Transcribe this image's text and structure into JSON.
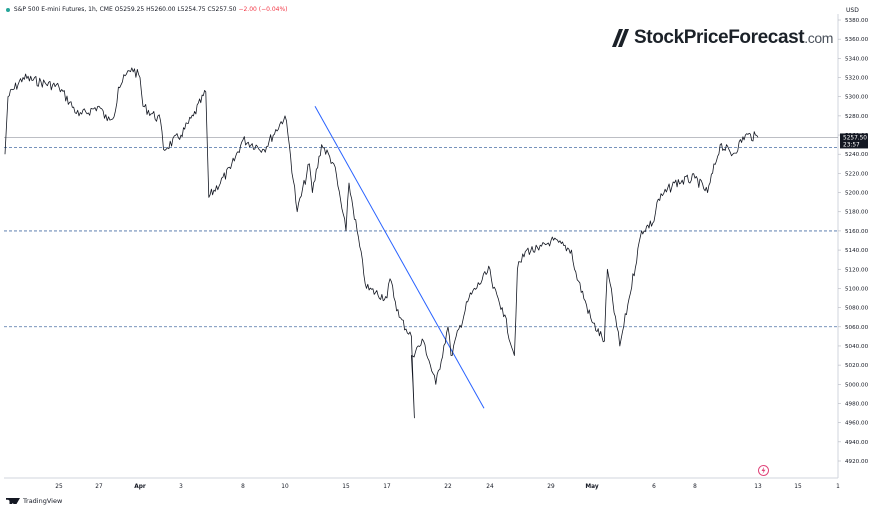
{
  "header": {
    "symbol_line": "S&P 500 E-mini Futures, 1h, CME",
    "open": "O5259.25",
    "high": "H5260.00",
    "low": "L5254.75",
    "close": "C5257.50",
    "change": "−2.00 (−0.04%)",
    "currency": "USD"
  },
  "brand": {
    "name": "StockPriceForecast",
    "domain": ".com"
  },
  "footer": {
    "tradingview": "TradingView"
  },
  "last_price": {
    "price": "5257.50",
    "countdown": "23:57"
  },
  "colors": {
    "candle": "#131722",
    "trendline": "#2962ff",
    "level_line": "#4a6fa5",
    "price_label_bg": "#131722",
    "axis_text": "#131722"
  },
  "chart_data": {
    "type": "line",
    "title": "S&P 500 E-mini Futures, 1h, CME",
    "xlabel": "",
    "ylabel": "",
    "y_axis_position": "right",
    "ylim": [
      4900,
      5380
    ],
    "y_ticks": [
      "5380.00",
      "5360.00",
      "5340.00",
      "5320.00",
      "5300.00",
      "5280.00",
      "5260.00",
      "5240.00",
      "5220.00",
      "5200.00",
      "5180.00",
      "5160.00",
      "5140.00",
      "5120.00",
      "5100.00",
      "5080.00",
      "5060.00",
      "5040.00",
      "5020.00",
      "5000.00",
      "4980.00",
      "4960.00",
      "4940.00",
      "4920.00"
    ],
    "x_ticks": [
      "25",
      "27",
      "Apr",
      "3",
      "8",
      "10",
      "15",
      "17",
      "22",
      "24",
      "29",
      "May",
      "6",
      "8",
      "13",
      "15",
      "1"
    ],
    "horizontal_levels": [
      5247,
      5160,
      5060
    ],
    "trendline": {
      "start": {
        "x": "Apr 11",
        "y": 5290
      },
      "end": {
        "x": "Apr 24",
        "y": 4975
      }
    },
    "series": [
      {
        "points": [
          [
            "Mar 22",
            5240
          ],
          [
            "Mar 22",
            5300
          ],
          [
            "Mar 23",
            5320
          ],
          [
            "Mar 25",
            5310
          ],
          [
            "Mar 26",
            5280
          ],
          [
            "Mar 27",
            5290
          ],
          [
            "Mar 28",
            5275
          ],
          [
            "Mar 29",
            5285
          ],
          [
            "Mar 29",
            5310
          ],
          [
            "Mar 31",
            5330
          ],
          [
            "Apr 1",
            5320
          ],
          [
            "Apr 1",
            5290
          ],
          [
            "Apr 2",
            5275
          ],
          [
            "Apr 2",
            5245
          ],
          [
            "Apr 3",
            5260
          ],
          [
            "Apr 4",
            5280
          ],
          [
            "Apr 5",
            5305
          ],
          [
            "Apr 5",
            5195
          ],
          [
            "Apr 7",
            5225
          ],
          [
            "Apr 8",
            5255
          ],
          [
            "Apr 9",
            5245
          ],
          [
            "Apr 10",
            5280
          ],
          [
            "Apr 10",
            5260
          ],
          [
            "Apr 11",
            5180
          ],
          [
            "Apr 12",
            5230
          ],
          [
            "Apr 12",
            5200
          ],
          [
            "Apr 13",
            5250
          ],
          [
            "Apr 14",
            5230
          ],
          [
            "Apr 15",
            5160
          ],
          [
            "Apr 15",
            5210
          ],
          [
            "Apr 16",
            5100
          ],
          [
            "Apr 17",
            5090
          ],
          [
            "Apr 17",
            5110
          ],
          [
            "Apr 18",
            5070
          ],
          [
            "Apr 19",
            5050
          ],
          [
            "Apr 19",
            4965
          ],
          [
            "Apr 19",
            5030
          ],
          [
            "Apr 20",
            5045
          ],
          [
            "Apr 21",
            5000
          ],
          [
            "Apr 22",
            5060
          ],
          [
            "Apr 22",
            5030
          ],
          [
            "Apr 23",
            5090
          ],
          [
            "Apr 24",
            5120
          ],
          [
            "Apr 24",
            5100
          ],
          [
            "Apr 25",
            5080
          ],
          [
            "Apr 26",
            5030
          ],
          [
            "Apr 26",
            5120
          ],
          [
            "Apr 27",
            5140
          ],
          [
            "Apr 28",
            5140
          ],
          [
            "Apr 29",
            5150
          ],
          [
            "Apr 30",
            5140
          ],
          [
            "Apr 30",
            5120
          ],
          [
            "May 1",
            5065
          ],
          [
            "May 2",
            5045
          ],
          [
            "May 2",
            5120
          ],
          [
            "May 3",
            5060
          ],
          [
            "May 3",
            5040
          ],
          [
            "May 4",
            5090
          ],
          [
            "May 5",
            5160
          ],
          [
            "May 6",
            5170
          ],
          [
            "May 6",
            5190
          ],
          [
            "May 7",
            5210
          ],
          [
            "May 8",
            5215
          ],
          [
            "May 9",
            5200
          ],
          [
            "May 10",
            5250
          ],
          [
            "May 11",
            5240
          ],
          [
            "May 12",
            5260
          ],
          [
            "May 13",
            5257.5
          ]
        ]
      }
    ]
  }
}
